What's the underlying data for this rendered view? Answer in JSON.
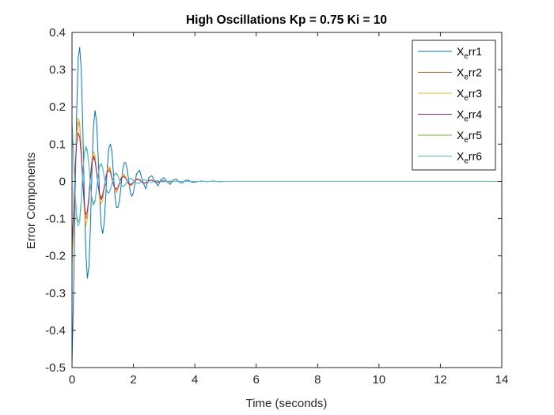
{
  "chart_data": {
    "type": "line",
    "title": "High Oscillations Kp = 0.75 Ki = 10",
    "xlabel": "Time (seconds)",
    "ylabel": "Error Components",
    "xlim": [
      0,
      14
    ],
    "ylim": [
      -0.5,
      0.4
    ],
    "xticks": [
      0,
      2,
      4,
      6,
      8,
      10,
      12,
      14
    ],
    "yticks": [
      -0.5,
      -0.4,
      -0.3,
      -0.2,
      -0.1,
      0,
      0.1,
      0.2,
      0.3,
      0.4
    ],
    "grid": false,
    "legend_position": "top-right",
    "x": [
      0,
      0.05,
      0.1,
      0.15,
      0.2,
      0.25,
      0.3,
      0.35,
      0.4,
      0.45,
      0.5,
      0.55,
      0.6,
      0.65,
      0.7,
      0.75,
      0.8,
      0.85,
      0.9,
      0.95,
      1.0,
      1.05,
      1.1,
      1.15,
      1.2,
      1.25,
      1.3,
      1.35,
      1.4,
      1.45,
      1.5,
      1.55,
      1.6,
      1.65,
      1.7,
      1.75,
      1.8,
      1.85,
      1.9,
      1.95,
      2.0,
      2.1,
      2.2,
      2.3,
      2.4,
      2.5,
      2.6,
      2.7,
      2.8,
      2.9,
      3.0,
      3.1,
      3.2,
      3.3,
      3.4,
      3.5,
      3.6,
      3.7,
      3.8,
      3.9,
      4.0,
      4.2,
      4.4,
      4.6,
      4.8,
      5.0,
      5.2,
      5.4,
      5.6,
      5.8,
      6.0,
      6.5,
      7.0,
      8.0,
      9.0,
      10.0,
      11.0,
      12.0,
      13.0,
      14.0
    ],
    "series": [
      {
        "name": "X_err1",
        "color": "#0072BD",
        "values": [
          -0.49,
          -0.3,
          -0.05,
          0.18,
          0.33,
          0.36,
          0.3,
          0.15,
          -0.04,
          -0.19,
          -0.26,
          -0.23,
          -0.12,
          0.03,
          0.15,
          0.19,
          0.16,
          0.07,
          -0.04,
          -0.12,
          -0.14,
          -0.11,
          -0.04,
          0.04,
          0.09,
          0.1,
          0.08,
          0.02,
          -0.04,
          -0.07,
          -0.07,
          -0.05,
          -0.01,
          0.03,
          0.05,
          0.05,
          0.03,
          0.0,
          -0.03,
          -0.04,
          -0.03,
          0.02,
          0.03,
          0.0,
          -0.02,
          0.01,
          0.015,
          0.0,
          -0.012,
          0.005,
          0.01,
          -0.002,
          -0.008,
          0.004,
          0.006,
          -0.003,
          -0.004,
          0.003,
          0.003,
          -0.002,
          -0.002,
          0.001,
          -0.001,
          0.001,
          -0.001,
          0.0,
          0.0,
          0.0,
          0.0,
          0.0,
          0.0,
          0.0,
          0.0,
          0.0,
          0.0,
          0.0,
          0.0,
          0.0,
          0.0,
          0.0
        ]
      },
      {
        "name": "X_err2",
        "color": "#D95319",
        "values": [
          -0.21,
          -0.12,
          0.02,
          0.12,
          0.16,
          0.15,
          0.09,
          0.0,
          -0.07,
          -0.1,
          -0.09,
          -0.05,
          0.01,
          0.05,
          0.07,
          0.06,
          0.03,
          -0.01,
          -0.04,
          -0.05,
          -0.04,
          -0.02,
          0.01,
          0.03,
          0.035,
          0.03,
          0.01,
          -0.01,
          -0.02,
          -0.025,
          -0.02,
          -0.005,
          0.01,
          0.015,
          0.015,
          0.01,
          0.0,
          -0.008,
          -0.01,
          -0.008,
          -0.003,
          0.007,
          0.005,
          -0.004,
          -0.005,
          0.002,
          0.004,
          -0.002,
          -0.003,
          0.001,
          0.002,
          -0.001,
          -0.001,
          0.001,
          0.001,
          0.0,
          0.0,
          0.0,
          0.0,
          0.0,
          0.0,
          0.0,
          0.0,
          0.0,
          0.0,
          0.0,
          0.0,
          0.0,
          0.0,
          0.0,
          0.0,
          0.0,
          0.0,
          0.0,
          0.0,
          0.0,
          0.0,
          0.0,
          0.0,
          0.0
        ]
      },
      {
        "name": "X_err3",
        "color": "#EDB120",
        "values": [
          -0.23,
          -0.13,
          0.02,
          0.13,
          0.17,
          0.16,
          0.09,
          0.0,
          -0.08,
          -0.12,
          -0.1,
          -0.05,
          0.02,
          0.06,
          0.08,
          0.07,
          0.03,
          -0.01,
          -0.05,
          -0.06,
          -0.05,
          -0.02,
          0.01,
          0.035,
          0.04,
          0.035,
          0.01,
          -0.01,
          -0.025,
          -0.03,
          -0.02,
          -0.005,
          0.01,
          0.02,
          0.02,
          0.01,
          0.0,
          -0.01,
          -0.012,
          -0.01,
          -0.004,
          0.008,
          0.006,
          -0.005,
          -0.006,
          0.003,
          0.004,
          -0.002,
          -0.003,
          0.001,
          0.002,
          -0.001,
          -0.001,
          0.001,
          0.001,
          0.0,
          0.0,
          0.0,
          0.0,
          0.0,
          0.0,
          0.0,
          0.0,
          0.0,
          0.0,
          0.0,
          0.0,
          0.0,
          0.0,
          0.0,
          0.0,
          0.0,
          0.0,
          0.0,
          0.0,
          0.0,
          0.0,
          0.0,
          0.0,
          0.0
        ]
      },
      {
        "name": "X_err4",
        "color": "#7E2F8E",
        "values": [
          -0.17,
          -0.09,
          0.03,
          0.1,
          0.13,
          0.12,
          0.07,
          0.0,
          -0.06,
          -0.09,
          -0.08,
          -0.04,
          0.01,
          0.05,
          0.065,
          0.055,
          0.025,
          -0.01,
          -0.035,
          -0.045,
          -0.035,
          -0.015,
          0.01,
          0.025,
          0.03,
          0.025,
          0.008,
          -0.008,
          -0.018,
          -0.02,
          -0.015,
          -0.004,
          0.008,
          0.012,
          0.012,
          0.008,
          0.0,
          -0.006,
          -0.008,
          -0.006,
          -0.002,
          0.005,
          0.004,
          -0.003,
          -0.004,
          0.002,
          0.003,
          -0.001,
          -0.002,
          0.001,
          0.001,
          0.0,
          -0.001,
          0.0,
          0.0,
          0.0,
          0.0,
          0.0,
          0.0,
          0.0,
          0.0,
          0.0,
          0.0,
          0.0,
          0.0,
          0.0,
          0.0,
          0.0,
          0.0,
          0.0,
          0.0,
          0.0,
          0.0,
          0.0,
          0.0,
          0.0,
          0.0,
          0.0,
          0.0,
          0.0
        ]
      },
      {
        "name": "X_err5",
        "color": "#77AC30",
        "values": [
          0.14,
          0.07,
          -0.03,
          -0.09,
          -0.11,
          -0.1,
          -0.05,
          0.02,
          0.07,
          0.09,
          0.08,
          0.04,
          -0.01,
          -0.045,
          -0.06,
          -0.05,
          -0.02,
          0.015,
          0.04,
          0.045,
          0.035,
          0.012,
          -0.012,
          -0.028,
          -0.03,
          -0.022,
          -0.006,
          0.01,
          0.02,
          0.02,
          0.014,
          0.002,
          -0.009,
          -0.013,
          -0.012,
          -0.007,
          0.001,
          0.007,
          0.008,
          0.006,
          0.002,
          -0.005,
          -0.004,
          0.003,
          0.004,
          -0.002,
          -0.003,
          0.001,
          0.002,
          -0.001,
          -0.001,
          0.0,
          0.001,
          0.0,
          0.0,
          0.0,
          0.0,
          0.0,
          0.0,
          0.0,
          0.0,
          0.0,
          0.0,
          0.0,
          0.0,
          0.0,
          0.0,
          0.0,
          0.0,
          0.0,
          0.0,
          0.0,
          0.0,
          0.0,
          0.0,
          0.0,
          0.0,
          0.0,
          0.0,
          0.0
        ]
      },
      {
        "name": "X_err6",
        "color": "#4DBEEE",
        "values": [
          0.16,
          0.08,
          -0.03,
          -0.1,
          -0.12,
          -0.11,
          -0.06,
          0.02,
          0.075,
          0.095,
          0.085,
          0.045,
          -0.01,
          -0.05,
          -0.065,
          -0.055,
          -0.022,
          0.017,
          0.042,
          0.048,
          0.037,
          0.013,
          -0.013,
          -0.03,
          -0.032,
          -0.024,
          -0.007,
          0.011,
          0.021,
          0.022,
          0.015,
          0.002,
          -0.01,
          -0.014,
          -0.013,
          -0.007,
          0.001,
          0.007,
          0.009,
          0.007,
          0.002,
          -0.005,
          -0.005,
          0.003,
          0.004,
          -0.002,
          -0.003,
          0.001,
          0.002,
          -0.001,
          -0.001,
          0.0,
          0.001,
          0.0,
          0.0,
          0.0,
          0.0,
          0.0,
          0.0,
          0.0,
          0.0,
          0.0,
          0.0,
          0.0,
          0.0,
          0.0,
          0.0,
          0.0,
          0.0,
          0.0,
          0.0,
          0.0,
          0.0,
          0.0,
          0.0,
          0.0,
          0.0,
          0.0,
          0.0,
          0.0
        ]
      }
    ]
  },
  "legend": {
    "entries": [
      {
        "base": "X",
        "sub": "e",
        "rest": "rr1"
      },
      {
        "base": "X",
        "sub": "e",
        "rest": "rr2"
      },
      {
        "base": "X",
        "sub": "e",
        "rest": "rr3"
      },
      {
        "base": "X",
        "sub": "e",
        "rest": "rr4"
      },
      {
        "base": "X",
        "sub": "e",
        "rest": "rr5"
      },
      {
        "base": "X",
        "sub": "e",
        "rest": "rr6"
      }
    ]
  }
}
